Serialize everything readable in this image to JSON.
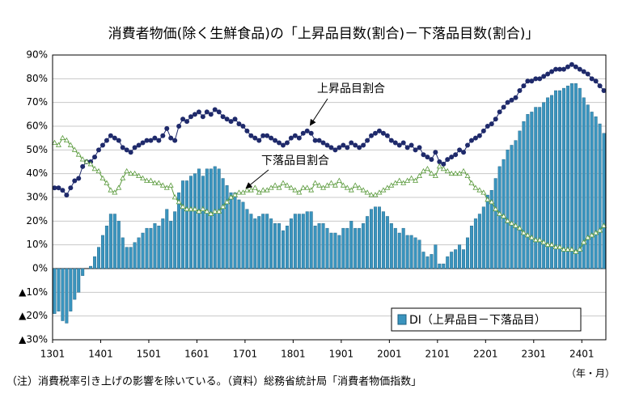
{
  "chart_data": {
    "type": "bar_line",
    "title": "消費者物価(除く生鮮食品)の「上昇品目数(割合)－下落品目数(割合)」",
    "footnote": "（注）消費税率引き上げの影響を除いている。（資料）総務省統計局「消費者物価指数」",
    "x_unit": "（年・月）",
    "categories": [
      "1301",
      null,
      null,
      null,
      null,
      null,
      null,
      null,
      null,
      null,
      null,
      null,
      "1401",
      null,
      null,
      null,
      null,
      null,
      null,
      null,
      null,
      null,
      null,
      null,
      "1501",
      null,
      null,
      null,
      null,
      null,
      null,
      null,
      null,
      null,
      null,
      null,
      "1601",
      null,
      null,
      null,
      null,
      null,
      null,
      null,
      null,
      null,
      null,
      null,
      "1701",
      null,
      null,
      null,
      null,
      null,
      null,
      null,
      null,
      null,
      null,
      null,
      "1801",
      null,
      null,
      null,
      null,
      null,
      null,
      null,
      null,
      null,
      null,
      null,
      "1901",
      null,
      null,
      null,
      null,
      null,
      null,
      null,
      null,
      null,
      null,
      null,
      "2001",
      null,
      null,
      null,
      null,
      null,
      null,
      null,
      null,
      null,
      null,
      null,
      "2101",
      null,
      null,
      null,
      null,
      null,
      null,
      null,
      null,
      null,
      null,
      null,
      "2201",
      null,
      null,
      null,
      null,
      null,
      null,
      null,
      null,
      null,
      null,
      null,
      "2301",
      null,
      null,
      null,
      null,
      null,
      null,
      null,
      null,
      null,
      null,
      null,
      "2401",
      null,
      null,
      null,
      null,
      null
    ],
    "series": [
      {
        "name": "DI（上昇品目－下落品目）",
        "kind": "bar",
        "color": "#3a94be",
        "values": [
          -19,
          -18,
          -22,
          -23,
          -18,
          -13,
          -10,
          -3,
          0,
          1,
          5,
          9,
          14,
          18,
          23,
          23,
          20,
          13,
          9,
          9,
          11,
          13,
          15,
          17,
          17,
          19,
          18,
          21,
          25,
          20,
          24,
          32,
          37,
          37,
          39,
          40,
          42,
          39,
          42,
          42,
          43,
          42,
          38,
          35,
          32,
          32,
          29,
          28,
          25,
          23,
          21,
          22,
          23,
          23,
          21,
          19,
          19,
          16,
          18,
          21,
          23,
          23,
          23,
          24,
          24,
          18,
          19,
          19,
          17,
          15,
          15,
          14,
          17,
          17,
          20,
          17,
          17,
          19,
          22,
          25,
          26,
          26,
          24,
          22,
          19,
          17,
          15,
          17,
          14,
          14,
          13,
          12,
          7,
          5,
          6,
          10,
          2,
          2,
          5,
          7,
          8,
          10,
          8,
          13,
          18,
          21,
          23,
          26,
          31,
          33,
          38,
          43,
          46,
          50,
          52,
          54,
          58,
          62,
          65,
          66,
          68,
          68,
          70,
          72,
          73,
          75,
          75,
          76,
          77,
          78,
          78,
          76,
          72,
          69,
          66,
          64,
          61,
          57
        ]
      },
      {
        "name": "上昇品目割合",
        "kind": "line",
        "color": "#1f2a6b",
        "values": [
          34,
          34,
          33,
          31,
          34,
          37,
          38,
          43,
          45,
          45,
          47,
          50,
          52,
          54,
          56,
          55,
          54,
          51,
          50,
          49,
          51,
          52,
          53,
          54,
          54,
          55,
          54,
          56,
          59,
          55,
          54,
          60,
          63,
          62,
          64,
          65,
          66,
          64,
          66,
          65,
          67,
          66,
          64,
          63,
          62,
          63,
          61,
          60,
          58,
          56,
          55,
          54,
          56,
          56,
          55,
          54,
          53,
          52,
          53,
          55,
          56,
          55,
          57,
          58,
          57,
          54,
          54,
          53,
          52,
          51,
          50,
          51,
          52,
          51,
          53,
          52,
          51,
          52,
          54,
          56,
          57,
          58,
          57,
          56,
          54,
          53,
          52,
          53,
          51,
          52,
          50,
          51,
          48,
          47,
          46,
          49,
          45,
          44,
          46,
          47,
          48,
          50,
          49,
          52,
          54,
          55,
          56,
          58,
          60,
          61,
          63,
          66,
          68,
          70,
          71,
          72,
          75,
          77,
          79,
          79,
          80,
          80,
          81,
          82,
          83,
          84,
          84,
          84,
          85,
          86,
          85,
          84,
          83,
          82,
          80,
          79,
          77,
          75
        ]
      },
      {
        "name": "下落品目割合",
        "kind": "line",
        "color": "#5a9a3c",
        "values": [
          53,
          52,
          55,
          54,
          52,
          50,
          48,
          46,
          45,
          44,
          42,
          41,
          38,
          36,
          33,
          32,
          34,
          38,
          41,
          40,
          40,
          39,
          38,
          37,
          37,
          36,
          36,
          35,
          34,
          35,
          30,
          28,
          26,
          25,
          25,
          25,
          24,
          25,
          24,
          23,
          24,
          24,
          26,
          28,
          30,
          31,
          32,
          32,
          33,
          33,
          34,
          32,
          33,
          33,
          34,
          35,
          34,
          36,
          35,
          34,
          33,
          32,
          34,
          34,
          33,
          36,
          35,
          34,
          35,
          36,
          35,
          37,
          35,
          34,
          33,
          35,
          34,
          33,
          32,
          31,
          31,
          32,
          33,
          34,
          35,
          36,
          37,
          36,
          37,
          38,
          37,
          39,
          41,
          42,
          40,
          39,
          43,
          42,
          41,
          40,
          40,
          40,
          41,
          39,
          36,
          34,
          33,
          32,
          29,
          28,
          25,
          23,
          22,
          20,
          19,
          18,
          17,
          15,
          14,
          13,
          12,
          12,
          11,
          10,
          10,
          9,
          9,
          8,
          8,
          8,
          7,
          8,
          11,
          13,
          14,
          15,
          16,
          18
        ]
      }
    ],
    "ylim": [
      -30,
      90
    ],
    "yticks": [
      {
        "value": -30,
        "label": "▲30%"
      },
      {
        "value": -20,
        "label": "▲20%"
      },
      {
        "value": -10,
        "label": "▲10%"
      },
      {
        "value": 0,
        "label": "0%"
      },
      {
        "value": 10,
        "label": "10%"
      },
      {
        "value": 20,
        "label": "20%"
      },
      {
        "value": 30,
        "label": "30%"
      },
      {
        "value": 40,
        "label": "40%"
      },
      {
        "value": 50,
        "label": "50%"
      },
      {
        "value": 60,
        "label": "60%"
      },
      {
        "value": 70,
        "label": "70%"
      },
      {
        "value": 80,
        "label": "80%"
      },
      {
        "value": 90,
        "label": "90%"
      }
    ],
    "grid": true
  }
}
